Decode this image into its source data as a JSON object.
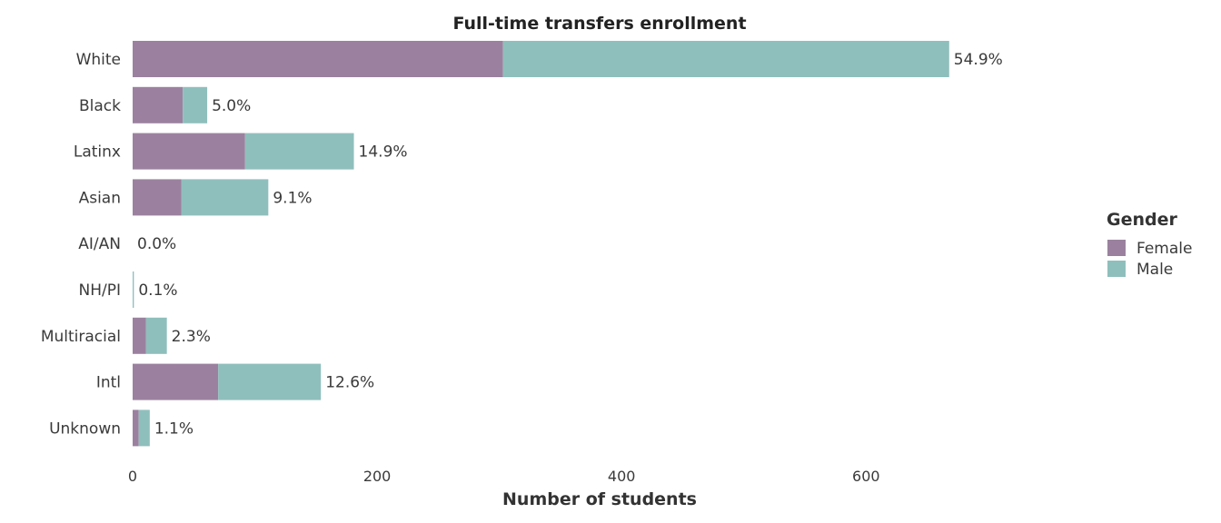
{
  "chart_data": {
    "type": "bar",
    "orientation": "horizontal",
    "stacked": true,
    "title": "Full-time transfers enrollment",
    "xlabel": "Number of students",
    "ylabel": "",
    "xlim": [
      0,
      700
    ],
    "xticks": [
      0,
      200,
      400,
      600
    ],
    "grid": false,
    "categories": [
      "White",
      "Black",
      "Latinx",
      "Asian",
      "AI/AN",
      "NH/PI",
      "Multiracial",
      "Intl",
      "Unknown"
    ],
    "series": [
      {
        "name": "Female",
        "color": "#9b819f",
        "values": [
          303,
          41,
          92,
          40,
          0,
          0,
          11,
          70,
          5
        ]
      },
      {
        "name": "Male",
        "color": "#8fbfbc",
        "values": [
          365,
          20,
          89,
          71,
          0,
          1,
          17,
          84,
          9
        ]
      }
    ],
    "percent_labels": [
      "54.9%",
      "5.0%",
      "14.9%",
      "9.1%",
      "0.0%",
      "0.1%",
      "2.3%",
      "12.6%",
      "1.1%"
    ],
    "legend": {
      "title": "Gender",
      "position": "right"
    }
  }
}
